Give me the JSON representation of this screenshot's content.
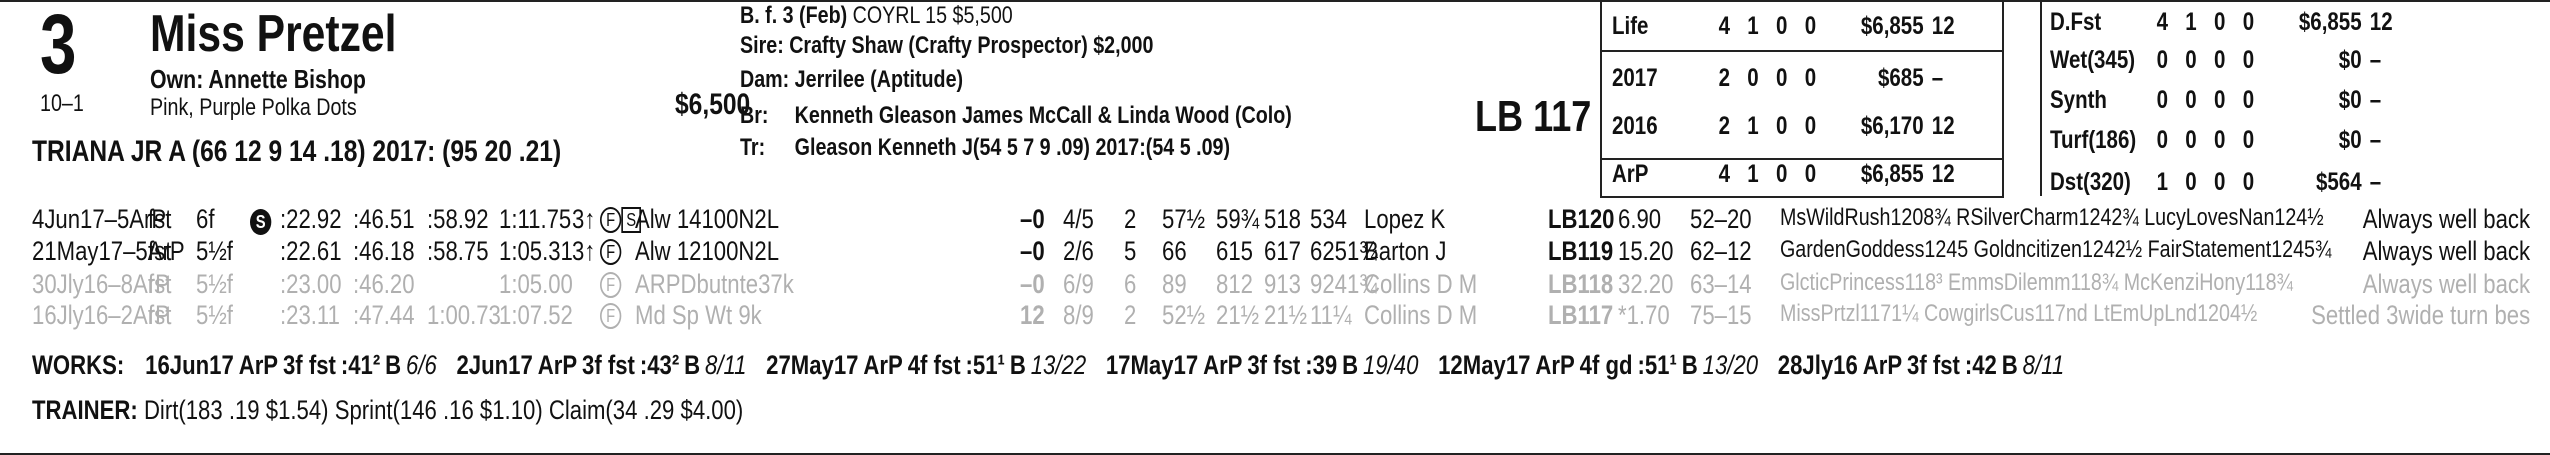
{
  "horse": {
    "program_number": "3",
    "name": "Miss Pretzel",
    "owner": "Own: Annette Bishop",
    "odds": "10–1",
    "silks": "Pink, Purple Polka Dots",
    "price": "$6,500",
    "jockey_line": "TRIANA JR A (66 12 9 14 .18) 2017: (95 20 .21)"
  },
  "pedigree": {
    "desc_prefix": "B. f. 3 (Feb)",
    "desc_sale": "COYRL 15 $5,500",
    "sire": "Sire: Crafty Shaw (Crafty Prospector) $2,000",
    "dam": "Dam: Jerrilee (Aptitude)",
    "breeder_label": "Br:",
    "breeder": "Kenneth Gleason James McCall & Linda Wood (Colo)",
    "trainer_label": "Tr:",
    "trainer": "Gleason Kenneth J(54 5 7 9 .09) 2017:(54 5 .09)"
  },
  "weight": "LB 117",
  "stats_left": [
    {
      "label": "Life",
      "st": "4",
      "w": "1",
      "p": "0",
      "s": "0",
      "earn": "$6,855",
      "spd": "12"
    },
    {
      "label": "2017",
      "st": "2",
      "w": "0",
      "p": "0",
      "s": "0",
      "earn": "$685",
      "spd": "–"
    },
    {
      "label": "2016",
      "st": "2",
      "w": "1",
      "p": "0",
      "s": "0",
      "earn": "$6,170",
      "spd": "12"
    },
    {
      "label": "ArP",
      "st": "4",
      "w": "1",
      "p": "0",
      "s": "0",
      "earn": "$6,855",
      "spd": "12"
    }
  ],
  "stats_right": [
    {
      "label": "D.Fst",
      "st": "4",
      "w": "1",
      "p": "0",
      "s": "0",
      "earn": "$6,855",
      "spd": "12"
    },
    {
      "label": "Wet(345)",
      "st": "0",
      "w": "0",
      "p": "0",
      "s": "0",
      "earn": "$0",
      "spd": "–"
    },
    {
      "label": "Synth",
      "st": "0",
      "w": "0",
      "p": "0",
      "s": "0",
      "earn": "$0",
      "spd": "–"
    },
    {
      "label": "Turf(186)",
      "st": "0",
      "w": "0",
      "p": "0",
      "s": "0",
      "earn": "$0",
      "spd": "–"
    },
    {
      "label": "Dst(320)",
      "st": "1",
      "w": "0",
      "p": "0",
      "s": "0",
      "earn": "$564",
      "spd": "–"
    }
  ],
  "races": [
    {
      "date": "4Jun17–5ArP",
      "cond": "fst",
      "dist": "6f",
      "sym": "S",
      "f1": ":22.92",
      "f2": ":46.51",
      "f3": ":58.92",
      "fin": "1:11.75",
      "age": "3↑",
      "fs": "F",
      "ss": "S",
      "race": "Alw 14100N2L",
      "rr": "–0",
      "pp": "4/5",
      "st": "2",
      "c1": "57½",
      "c2": "59¾",
      "str": "518",
      "fn": "534",
      "jockey": "Lopez K",
      "wt": "LB120",
      "odds": "6.90",
      "pace": "52–20",
      "comp": "MsWildRush1208¾ RSilverCharm1242¾ LucyLovesNan124½",
      "comment": "Always well back"
    },
    {
      "date": "21May17–5ArP",
      "cond": "fst",
      "dist": "5½f",
      "sym": "",
      "f1": ":22.61",
      "f2": ":46.18",
      "f3": ":58.75",
      "fin": "1:05.31",
      "age": "3↑",
      "fs": "F",
      "ss": "",
      "race": "Alw 12100N2L",
      "rr": "–0",
      "pp": "2/6",
      "st": "5",
      "c1": "66",
      "c2": "615",
      "str": "617",
      "fn": "6251¾",
      "jockey": "Barton J",
      "wt": "LB119",
      "odds": "15.20",
      "pace": "62–12",
      "comp": "GardenGoddess1245 Goldncitizen1242½ FairStatement1245¾",
      "comment": "Always well back"
    },
    {
      "date": "30Jly16–8ArP",
      "cond": "fst",
      "dist": "5½f",
      "sym": "",
      "f1": ":23.00",
      "f2": ":46.20",
      "f3": "",
      "fin": "1:05.00",
      "age": "",
      "fs": "F",
      "ss": "",
      "race": "ARPDbutnte37k",
      "rr": "–0",
      "pp": "6/9",
      "st": "6",
      "c1": "89",
      "c2": "812",
      "str": "913",
      "fn": "9241¾",
      "jockey": "Collins D M",
      "wt": "LB118",
      "odds": "32.20",
      "pace": "63–14",
      "comp": "GlcticPrincess118³ EmmsDilemm118¾ McKenziHony118¾",
      "comment": "Always well back"
    },
    {
      "date": "16Jly16–2ArP",
      "cond": "fst",
      "dist": "5½f",
      "sym": "",
      "f1": ":23.11",
      "f2": ":47.44",
      "f3": "1:00.73",
      "fin": "1:07.52",
      "age": "",
      "fs": "F",
      "ss": "",
      "race": "Md Sp Wt 9k",
      "rr": "12",
      "pp": "8/9",
      "st": "2",
      "c1": "52½",
      "c2": "21½",
      "str": "21½",
      "fn": "11¼",
      "jockey": "Collins D M",
      "wt": "LB117",
      "odds": "*1.70",
      "pace": "75–15",
      "comp": "MissPrtzl1171¼ CowgirlsCus117nd LtEmUpLnd1204½",
      "comment": "Settled 3wide turn bes"
    }
  ],
  "works_label": "WORKS:",
  "works": [
    {
      "date": "16Jun17",
      "trk": "ArP",
      "dist": "3f fst",
      "time": ":41²",
      "grade": "B",
      "rank": "6/6"
    },
    {
      "date": "2Jun17",
      "trk": "ArP",
      "dist": "3f fst",
      "time": ":43²",
      "grade": "B",
      "rank": "8/11"
    },
    {
      "date": "27May17",
      "trk": "ArP",
      "dist": "4f fst",
      "time": ":51¹",
      "grade": "B",
      "rank": "13/22"
    },
    {
      "date": "17May17",
      "trk": "ArP",
      "dist": "3f fst",
      "time": ":39",
      "grade": "B",
      "rank": "19/40"
    },
    {
      "date": "12May17",
      "trk": "ArP",
      "dist": "4f gd",
      "time": ":51¹",
      "grade": "B",
      "rank": "13/20"
    },
    {
      "date": "28Jly16",
      "trk": "ArP",
      "dist": "3f fst",
      "time": ":42",
      "grade": "B",
      "rank": "8/11"
    }
  ],
  "trainer_label": "TRAINER:",
  "trainer_stats": "Dirt(183 .19 $1.54) Sprint(146 .16 $1.10) Claim(34 .29 $4.00)"
}
